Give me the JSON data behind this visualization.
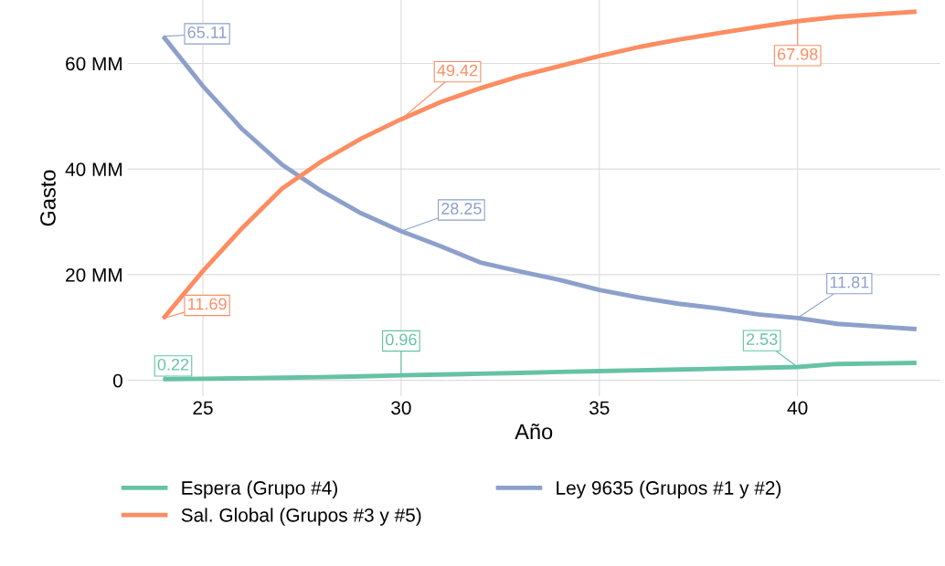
{
  "chart_data": {
    "type": "line",
    "xlabel": "Año",
    "ylabel": "Gasto",
    "x": [
      24,
      25,
      26,
      27,
      28,
      29,
      30,
      31,
      32,
      33,
      34,
      35,
      36,
      37,
      38,
      39,
      40,
      41,
      42,
      43
    ],
    "series": [
      {
        "name": "Espera (Grupo #4)",
        "color": "#66c2a5",
        "values": [
          0.22,
          0.3,
          0.4,
          0.5,
          0.6,
          0.75,
          0.96,
          1.1,
          1.25,
          1.4,
          1.6,
          1.75,
          1.9,
          2.05,
          2.2,
          2.35,
          2.53,
          3.1,
          3.2,
          3.3
        ]
      },
      {
        "name": "Ley 9635 (Grupos #1 y #2)",
        "color": "#8da0cb",
        "values": [
          65.11,
          55.7,
          47.5,
          40.8,
          35.8,
          31.6,
          28.25,
          25.4,
          22.3,
          20.6,
          19.0,
          17.1,
          15.7,
          14.5,
          13.6,
          12.5,
          11.81,
          10.7,
          10.2,
          9.7
        ]
      },
      {
        "name": "Sal. Global (Grupos #3 y #5)",
        "color": "#fc8d62",
        "values": [
          11.69,
          20.7,
          28.9,
          36.3,
          41.5,
          45.8,
          49.42,
          52.7,
          55.3,
          57.6,
          59.5,
          61.4,
          63.1,
          64.5,
          65.7,
          66.9,
          67.98,
          68.8,
          69.3,
          69.8
        ]
      }
    ],
    "xlim": [
      23.1,
      43.6
    ],
    "xticks": [
      25,
      30,
      35,
      40
    ],
    "ylim": [
      -3,
      72
    ],
    "yticks": [
      0,
      {
        "value": 20,
        "label": "20 MM"
      },
      {
        "value": 40,
        "label": "40 MM"
      },
      {
        "value": 60,
        "label": "60 MM"
      }
    ],
    "grid": true,
    "legend": "bottom",
    "annotations": [
      {
        "text": "0.22",
        "x": 24,
        "y": 0.22
      },
      {
        "text": "0.96",
        "x": 30,
        "y": 0.96
      },
      {
        "text": "2.53",
        "x": 40,
        "y": 2.53
      },
      {
        "text": "65.11",
        "x": 24,
        "y": 65.11
      },
      {
        "text": "28.25",
        "x": 30,
        "y": 28.25
      },
      {
        "text": "11.81",
        "x": 40,
        "y": 11.81
      },
      {
        "text": "11.69",
        "x": 24,
        "y": 11.69
      },
      {
        "text": "49.42",
        "x": 30,
        "y": 49.42
      },
      {
        "text": "67.98",
        "x": 40,
        "y": 67.98
      }
    ]
  }
}
